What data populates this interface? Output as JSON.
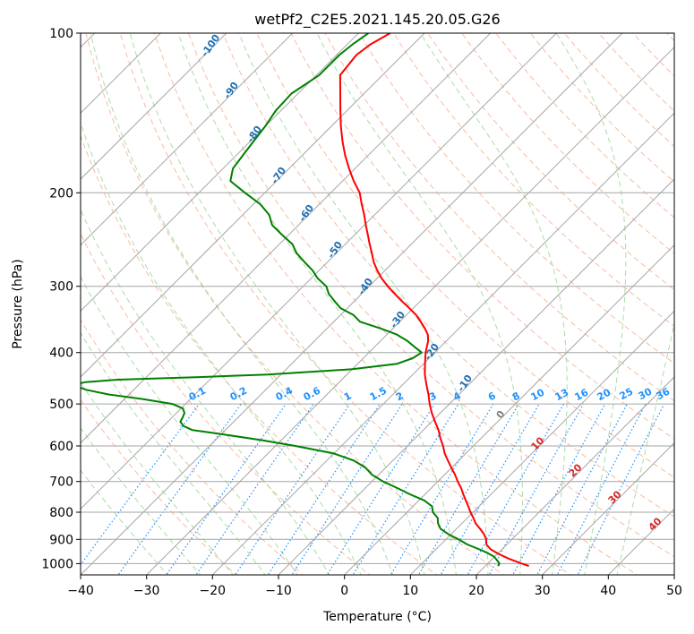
{
  "chart_data": {
    "type": "line",
    "title": "wetPf2_C2E5.2021.145.20.05.G26",
    "xlabel": "Temperature (°C)",
    "ylabel": "Pressure (hPa)",
    "xlim": [
      -40,
      50
    ],
    "ylim": [
      1050,
      100
    ],
    "y_scale": "log",
    "x_ticks": [
      -40,
      -30,
      -20,
      -10,
      0,
      10,
      20,
      30,
      40,
      50
    ],
    "y_ticks": [
      100,
      200,
      300,
      400,
      500,
      600,
      700,
      800,
      900,
      1000
    ],
    "skew_deg": 45,
    "grid": true,
    "series": [
      {
        "color": "#ff0000",
        "role": "temperature",
        "pressure": [
          1010,
          1000,
          980,
          960,
          940,
          920,
          900,
          880,
          860,
          840,
          820,
          800,
          780,
          760,
          740,
          720,
          700,
          680,
          660,
          640,
          620,
          600,
          580,
          560,
          540,
          520,
          500,
          480,
          460,
          440,
          420,
          400,
          390,
          380,
          370,
          360,
          350,
          340,
          330,
          320,
          310,
          300,
          290,
          280,
          270,
          260,
          250,
          240,
          230,
          220,
          210,
          200,
          190,
          180,
          170,
          160,
          150,
          140,
          130,
          120,
          110,
          105,
          100
        ],
        "temp": [
          26.6,
          25.2,
          22.6,
          20.3,
          18.3,
          16.9,
          16.1,
          15.0,
          13.6,
          12.1,
          10.9,
          9.6,
          8.4,
          7.1,
          5.8,
          4.5,
          3.0,
          1.6,
          0.0,
          -1.6,
          -3.2,
          -4.6,
          -6.2,
          -7.7,
          -9.5,
          -11.3,
          -13.0,
          -14.6,
          -16.4,
          -18.2,
          -19.8,
          -21.4,
          -22.1,
          -22.8,
          -23.8,
          -25.2,
          -26.8,
          -28.5,
          -30.6,
          -32.8,
          -35.0,
          -37.2,
          -39.3,
          -41.2,
          -43.0,
          -44.6,
          -46.3,
          -48.0,
          -49.8,
          -51.6,
          -53.6,
          -55.6,
          -58.3,
          -60.9,
          -63.5,
          -66.0,
          -68.5,
          -71.0,
          -73.6,
          -76.4,
          -77.0,
          -76.5,
          -75.2
        ]
      },
      {
        "color": "#008000",
        "role": "dewpoint",
        "pressure": [
          1010,
          1000,
          985,
          970,
          955,
          940,
          920,
          900,
          880,
          860,
          840,
          820,
          800,
          780,
          760,
          740,
          720,
          700,
          680,
          660,
          640,
          620,
          600,
          585,
          570,
          560,
          550,
          540,
          530,
          520,
          510,
          500,
          490,
          480,
          470,
          460,
          455,
          450,
          445,
          440,
          430,
          420,
          410,
          400,
          390,
          380,
          370,
          360,
          350,
          340,
          330,
          320,
          310,
          300,
          290,
          280,
          270,
          260,
          250,
          240,
          230,
          220,
          210,
          200,
          190,
          180,
          170,
          160,
          150,
          140,
          130,
          120,
          110,
          105,
          100
        ],
        "temp": [
          21.9,
          21.8,
          20.9,
          19.9,
          18.4,
          16.6,
          14.0,
          11.9,
          9.6,
          7.6,
          6.4,
          5.5,
          3.9,
          2.9,
          0.8,
          -2.3,
          -5.2,
          -8.3,
          -11.0,
          -13.0,
          -15.8,
          -20.0,
          -27.0,
          -33.0,
          -40.0,
          -45.0,
          -47.0,
          -48.1,
          -48.4,
          -48.8,
          -49.7,
          -52.0,
          -57.0,
          -63.0,
          -67.3,
          -70.0,
          -68.5,
          -64.0,
          -52.0,
          -42.0,
          -30.0,
          -24.0,
          -22.5,
          -22.0,
          -24.0,
          -26.0,
          -28.5,
          -32.0,
          -36.0,
          -38.0,
          -41.0,
          -43.0,
          -45.0,
          -46.5,
          -49.0,
          -51.0,
          -53.5,
          -56.0,
          -58.0,
          -61.0,
          -64.0,
          -66.0,
          -69.0,
          -73.0,
          -77.0,
          -78.5,
          -79.0,
          -79.5,
          -80.0,
          -80.8,
          -81.0,
          -79.6,
          -79.6,
          -79.2,
          -78.5
        ]
      }
    ],
    "dry_adiabat_labels": [
      "-100",
      "-90",
      "-80",
      "-70",
      "-60",
      "-50",
      "-40",
      "-30",
      "-20",
      "-10",
      "0",
      "10",
      "20",
      "30",
      "40"
    ],
    "mixing_ratio_labels": [
      "0.1",
      "0.2",
      "0.4",
      "0.6",
      "1",
      "1.5",
      "2",
      "3",
      "4",
      "6",
      "8",
      "10",
      "13",
      "16",
      "20",
      "25",
      "30",
      "36"
    ],
    "colors": {
      "temperature": "#ff0000",
      "dewpoint": "#008000",
      "isotherm": "#a6a6a6",
      "isobar": "#a6a6a6",
      "dry_adiabat": "#f4a582",
      "moist_adiabat": "#a1d99b",
      "mixing_ratio": "#1e90ff",
      "moist_adiabat_label": "#1f6fb0",
      "dry_adiabat_label_warm": "#d62728",
      "zero_label": "#808080"
    }
  }
}
